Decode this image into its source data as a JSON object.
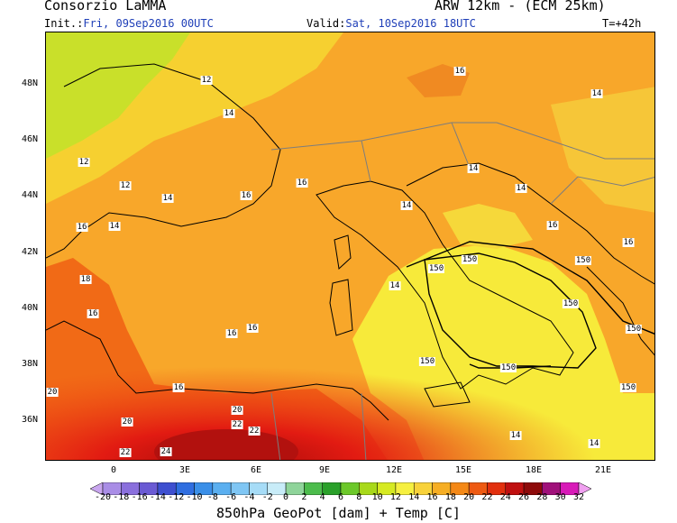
{
  "header": {
    "org": "Consorzio LaMMA",
    "model": "ARW 12km - (ECM 25km)",
    "init_label": "Init.:",
    "init_value": "Fri, 09Sep2016 00UTC",
    "valid_label": "Valid:",
    "valid_value": "Sat, 10Sep2016 18UTC",
    "lead": "T=+42h"
  },
  "axes": {
    "lat_labels": [
      "48N",
      "46N",
      "44N",
      "42N",
      "40N",
      "38N",
      "36N"
    ],
    "lon_labels": [
      "0",
      "3E",
      "6E",
      "9E",
      "12E",
      "15E",
      "18E",
      "21E"
    ]
  },
  "colorbar": {
    "labels": [
      "-20",
      "-18",
      "-16",
      "-14",
      "-12",
      "-10",
      "-8",
      "-6",
      "-4",
      "-2",
      "0",
      "2",
      "4",
      "6",
      "8",
      "10",
      "12",
      "14",
      "16",
      "18",
      "20",
      "22",
      "24",
      "26",
      "28",
      "30",
      "32"
    ],
    "colors": [
      "#c9a6ef",
      "#a98de6",
      "#8a6fdd",
      "#6a5ad4",
      "#3d4fd0",
      "#2f6ee0",
      "#3a8fe8",
      "#5aaff0",
      "#7fc6f4",
      "#a6dcf7",
      "#c8ecf8",
      "#8fd49a",
      "#4cbc4c",
      "#2aa02a",
      "#6cc82a",
      "#a8d91a",
      "#d6ea22",
      "#f6f040",
      "#f8d23a",
      "#f6ae24",
      "#f48816",
      "#ee5a12",
      "#e2300e",
      "#c01010",
      "#8e0a0a",
      "#a0107a",
      "#d81ab8",
      "#f0a0f0"
    ]
  },
  "contour_labels": {
    "temperature": [
      "12",
      "14",
      "14",
      "12",
      "12",
      "14",
      "16",
      "16",
      "14",
      "14",
      "16",
      "16",
      "14",
      "16",
      "14",
      "16",
      "18",
      "16",
      "14",
      "16",
      "16",
      "16",
      "20",
      "20",
      "20",
      "22",
      "22",
      "22",
      "24",
      "14",
      "14"
    ],
    "geopotential": [
      "150",
      "150",
      "150",
      "150",
      "150",
      "150",
      "150",
      "150"
    ]
  },
  "footer": "850hPa GeoPot [dam] + Temp [C]"
}
